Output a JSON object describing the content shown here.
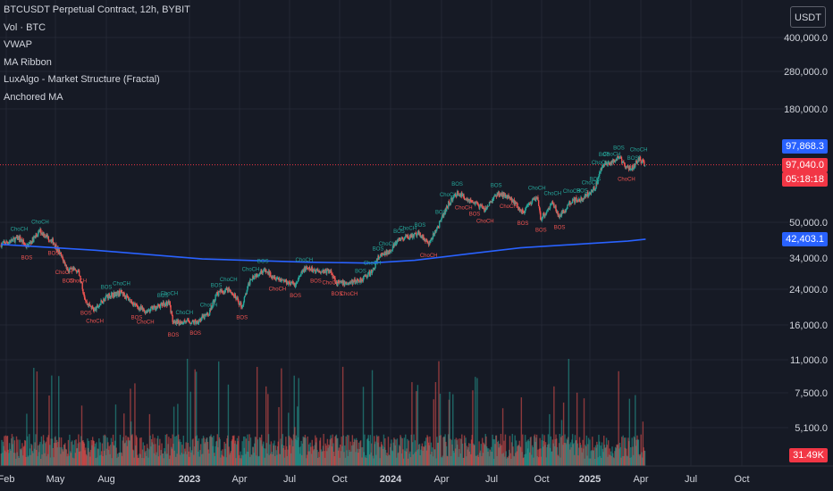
{
  "legend": {
    "title": "BTCUSDT Perpetual Contract, 12h, BYBIT",
    "items": [
      "Vol · BTC",
      "VWAP",
      "MA Ribbon",
      "LuxAlgo - Market Structure (Fractal)",
      "Anchored MA"
    ]
  },
  "currency_button": "USDT",
  "price_labels": {
    "blue": {
      "text": "97,868.3",
      "color": "#2962ff"
    },
    "last": {
      "text": "97,040.0",
      "color": "#f23645"
    },
    "countdown": {
      "text": "05:18:18",
      "color": "#f23645"
    },
    "ma": {
      "text": "42,403.1",
      "color": "#2962ff"
    },
    "volume": {
      "text": "31.49K",
      "color": "#f23645"
    }
  },
  "colors": {
    "up": "#26a69a",
    "down": "#ef5350",
    "ma": "#2962ff",
    "background": "#161a25",
    "grid": "#232733",
    "last_price_line": "#f23645"
  },
  "chart_data": {
    "type": "candlestick",
    "title": "BTCUSDT Perpetual Contract, 12h, BYBIT",
    "scale": "log",
    "grid": true,
    "y_ticks": [
      "400,000.0",
      "280,000.0",
      "180,000.0",
      "50,000.0",
      "34,000.0",
      "24,000.0",
      "16,000.0",
      "11,000.0",
      "7,500.0",
      "5,100.0"
    ],
    "x_ticks": [
      "Feb",
      "May",
      "Aug",
      "2023",
      "Apr",
      "Jul",
      "Oct",
      "2024",
      "Apr",
      "Jul",
      "Oct",
      "2025",
      "Apr",
      "Jul",
      "Oct"
    ],
    "price_series": {
      "name": "BTCUSDT",
      "x": [
        "2022-01-20",
        "2022-02-20",
        "2022-03-05",
        "2022-03-28",
        "2022-04-20",
        "2022-05-08",
        "2022-05-15",
        "2022-06-01",
        "2022-06-15",
        "2022-06-30",
        "2022-07-20",
        "2022-08-15",
        "2022-09-10",
        "2022-09-25",
        "2022-10-25",
        "2022-11-05",
        "2022-11-12",
        "2022-12-01",
        "2022-12-20",
        "2023-01-12",
        "2023-01-25",
        "2023-02-15",
        "2023-03-10",
        "2023-03-25",
        "2023-04-15",
        "2023-05-10",
        "2023-06-10",
        "2023-06-25",
        "2023-07-15",
        "2023-08-10",
        "2023-08-20",
        "2023-09-10",
        "2023-09-30",
        "2023-10-20",
        "2023-10-30",
        "2023-11-15",
        "2023-12-05",
        "2023-12-20",
        "2024-01-10",
        "2024-01-25",
        "2024-02-15",
        "2024-02-28",
        "2024-03-14",
        "2024-03-25",
        "2024-04-13",
        "2024-05-01",
        "2024-05-20",
        "2024-06-10",
        "2024-07-05",
        "2024-07-29",
        "2024-08-05",
        "2024-08-25",
        "2024-09-06",
        "2024-09-27",
        "2024-10-15",
        "2024-10-29",
        "2024-11-06",
        "2024-11-15",
        "2024-11-22",
        "2024-12-05",
        "2024-12-17",
        "2024-12-30",
        "2025-01-10",
        "2025-01-20",
        "2025-01-31"
      ],
      "y": [
        40000,
        43000,
        39000,
        46500,
        41000,
        33000,
        30000,
        30000,
        21000,
        19200,
        22500,
        23500,
        20000,
        19000,
        20500,
        21000,
        16500,
        17000,
        16800,
        18500,
        23000,
        24500,
        20000,
        27500,
        30000,
        27500,
        25500,
        30500,
        30000,
        29500,
        26000,
        26000,
        27000,
        29500,
        34500,
        36500,
        42000,
        43500,
        45000,
        40000,
        52000,
        63000,
        71000,
        68000,
        63500,
        58500,
        70000,
        69000,
        57000,
        68000,
        53000,
        64000,
        54500,
        65500,
        66000,
        72000,
        75000,
        90000,
        98500,
        99000,
        106000,
        93500,
        94500,
        104000,
        97040
      ]
    },
    "ma_series": {
      "name": "Anchored MA",
      "x": [
        "2022-01-20",
        "2022-07-01",
        "2023-01-01",
        "2023-07-01",
        "2023-10-15",
        "2024-01-01",
        "2024-04-01",
        "2024-07-01",
        "2024-10-01",
        "2025-01-01",
        "2025-02-01"
      ],
      "y": [
        40000,
        37500,
        34000,
        32800,
        32500,
        33500,
        36000,
        38500,
        40000,
        41500,
        42403.1
      ]
    },
    "last_price": 97040.0,
    "blue_price": 97868.3,
    "ma_last": 42403.1,
    "volume_last": "31.49K",
    "annotations": [
      "BOS",
      "ChoCH"
    ]
  }
}
